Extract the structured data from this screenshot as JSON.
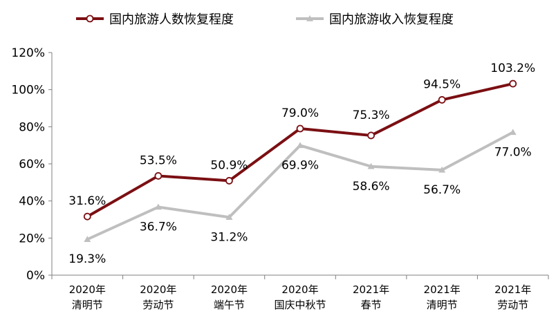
{
  "chart_data": {
    "type": "line",
    "categories": [
      [
        "2020年",
        "清明节"
      ],
      [
        "2020年",
        "劳动节"
      ],
      [
        "2020年",
        "端午节"
      ],
      [
        "2020年",
        "国庆中秋节"
      ],
      [
        "2021年",
        "春节"
      ],
      [
        "2021年",
        "清明节"
      ],
      [
        "2021年",
        "劳动节"
      ]
    ],
    "series": [
      {
        "name": "国内旅游人数恢复程度",
        "values": [
          31.6,
          53.5,
          50.9,
          79.0,
          75.3,
          94.5,
          103.2
        ],
        "labels": [
          "31.6%",
          "53.5%",
          "50.9%",
          "79.0%",
          "75.3%",
          "94.5%",
          "103.2%"
        ],
        "color": "#7b0f13",
        "marker": "circle"
      },
      {
        "name": "国内旅游收入恢复程度",
        "values": [
          19.3,
          36.7,
          31.2,
          69.9,
          58.6,
          56.7,
          77.0
        ],
        "labels": [
          "19.3%",
          "36.7%",
          "31.2%",
          "69.9%",
          "58.6%",
          "56.7%",
          "77.0%"
        ],
        "color": "#bfbfbf",
        "marker": "triangle"
      }
    ],
    "yticks": [
      "0%",
      "20%",
      "40%",
      "60%",
      "80%",
      "100%",
      "120%"
    ],
    "ylim": [
      0,
      120
    ],
    "grid": false,
    "legend_position": "top-left"
  }
}
